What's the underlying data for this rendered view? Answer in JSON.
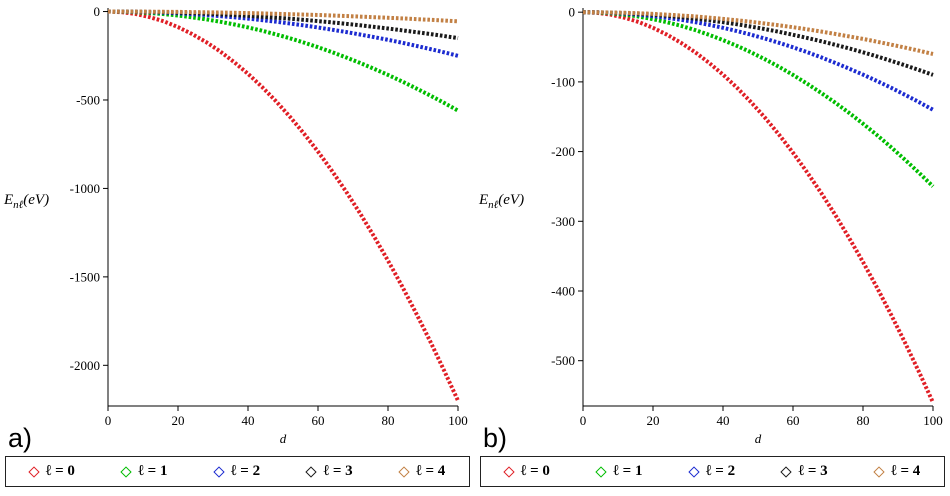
{
  "figure": {
    "panels": [
      {
        "corner_label": "a)"
      },
      {
        "corner_label": "b)"
      }
    ],
    "ylabel": {
      "base": "E",
      "sub": "nℓ",
      "unit": "(eV)"
    },
    "legend": {
      "items": [
        {
          "label": "ℓ = 0",
          "color": "#e01f26"
        },
        {
          "label": "ℓ = 1",
          "color": "#00bd00"
        },
        {
          "label": "ℓ = 2",
          "color": "#1c2bd0"
        },
        {
          "label": "ℓ = 3",
          "color": "#1a1a1a"
        },
        {
          "label": "ℓ = 4",
          "color": "#c28044"
        }
      ]
    }
  },
  "chart_data": [
    {
      "type": "line",
      "title": "",
      "xlabel": "d",
      "ylabel": "E_nℓ(eV)",
      "xlim": [
        0,
        100
      ],
      "ylim": [
        -2230,
        20
      ],
      "x_ticks": [
        0,
        20,
        40,
        60,
        80,
        100
      ],
      "y_ticks": [
        0,
        -500,
        -1000,
        -1500,
        -2000
      ],
      "grid": false,
      "legend_position": "bottom",
      "x": [
        0,
        4,
        8,
        12,
        16,
        20,
        24,
        28,
        32,
        36,
        40,
        44,
        48,
        52,
        56,
        60,
        64,
        68,
        72,
        76,
        80,
        84,
        88,
        92,
        96,
        100
      ],
      "series": [
        {
          "name": "ℓ = 0",
          "color": "#e01f26",
          "values": [
            0,
            -4,
            -14,
            -32,
            -56,
            -88,
            -127,
            -172,
            -225,
            -285,
            -352,
            -426,
            -507,
            -595,
            -690,
            -792,
            -901,
            -1017,
            -1140,
            -1271,
            -1408,
            -1552,
            -1704,
            -1862,
            -2028,
            -2200
          ]
        },
        {
          "name": "ℓ = 1",
          "color": "#00bd00",
          "values": [
            0,
            -0.9,
            -3.6,
            -8.1,
            -14.3,
            -22.4,
            -32.3,
            -43.9,
            -57.3,
            -72.6,
            -89.6,
            -108.4,
            -129,
            -151.4,
            -175.6,
            -201.6,
            -229.4,
            -259,
            -290.3,
            -323.5,
            -358.4,
            -395.1,
            -433.7,
            -474,
            -516.1,
            -560
          ]
        },
        {
          "name": "ℓ = 2",
          "color": "#1c2bd0",
          "values": [
            0,
            -0.4,
            -1.6,
            -3.6,
            -6.4,
            -10,
            -14.4,
            -19.6,
            -25.6,
            -32.4,
            -40,
            -48.4,
            -57.6,
            -67.6,
            -78.4,
            -90,
            -102.4,
            -115.6,
            -129.6,
            -144.4,
            -160,
            -176.4,
            -193.6,
            -211.6,
            -230.4,
            -250
          ]
        },
        {
          "name": "ℓ = 3",
          "color": "#1a1a1a",
          "values": [
            0,
            -0.2,
            -1,
            -2.2,
            -3.8,
            -6,
            -8.6,
            -11.8,
            -15.4,
            -19.4,
            -24,
            -29,
            -34.6,
            -40.6,
            -47,
            -54,
            -61.4,
            -69.4,
            -77.8,
            -86.6,
            -96,
            -105.8,
            -116.2,
            -127,
            -138.2,
            -150
          ]
        },
        {
          "name": "ℓ = 4",
          "color": "#c28044",
          "values": [
            0,
            -0.1,
            -0.4,
            -0.8,
            -1.4,
            -2.2,
            -3.2,
            -4.3,
            -5.6,
            -7.1,
            -8.8,
            -10.7,
            -12.7,
            -14.9,
            -17.3,
            -19.8,
            -22.5,
            -25.4,
            -28.5,
            -31.8,
            -35.2,
            -38.8,
            -42.6,
            -46.6,
            -50.7,
            -55
          ]
        }
      ]
    },
    {
      "type": "line",
      "title": "",
      "xlabel": "d",
      "ylabel": "E_nℓ(eV)",
      "xlim": [
        0,
        100
      ],
      "ylim": [
        -565,
        6
      ],
      "x_ticks": [
        0,
        20,
        40,
        60,
        80,
        100
      ],
      "y_ticks": [
        0,
        -100,
        -200,
        -300,
        -400,
        -500
      ],
      "grid": false,
      "legend_position": "bottom",
      "x": [
        0,
        4,
        8,
        12,
        16,
        20,
        24,
        28,
        32,
        36,
        40,
        44,
        48,
        52,
        56,
        60,
        64,
        68,
        72,
        76,
        80,
        84,
        88,
        92,
        96,
        100
      ],
      "series": [
        {
          "name": "ℓ = 0",
          "color": "#e01f26",
          "values": [
            0,
            -0.9,
            -3.6,
            -8.1,
            -14.3,
            -22.4,
            -32.3,
            -43.9,
            -57.3,
            -72.6,
            -89.6,
            -108.4,
            -129,
            -151.4,
            -175.6,
            -201.6,
            -229.4,
            -259,
            -290.3,
            -323.5,
            -358.4,
            -395.1,
            -433.7,
            -474,
            -516.1,
            -560
          ]
        },
        {
          "name": "ℓ = 1",
          "color": "#00bd00",
          "values": [
            0,
            -0.4,
            -1.6,
            -3.6,
            -6.4,
            -10,
            -14.4,
            -19.6,
            -25.6,
            -32.4,
            -40,
            -48.4,
            -57.6,
            -67.6,
            -78.4,
            -90,
            -102.4,
            -115.6,
            -129.6,
            -144.4,
            -160,
            -176.4,
            -193.6,
            -211.6,
            -230.4,
            -250
          ]
        },
        {
          "name": "ℓ = 2",
          "color": "#1c2bd0",
          "values": [
            0,
            -0.2,
            -0.9,
            -2,
            -3.6,
            -5.6,
            -8.1,
            -11,
            -14.3,
            -18.1,
            -22.4,
            -27.1,
            -32.3,
            -37.9,
            -43.9,
            -50.4,
            -57.3,
            -64.7,
            -72.6,
            -80.9,
            -89.6,
            -98.8,
            -108.4,
            -118.5,
            -129,
            -140
          ]
        },
        {
          "name": "ℓ = 3",
          "color": "#1a1a1a",
          "values": [
            0,
            -0.1,
            -0.6,
            -1.3,
            -2.3,
            -3.6,
            -5.2,
            -7.1,
            -9.2,
            -11.7,
            -14.4,
            -17.4,
            -20.7,
            -24.3,
            -28.2,
            -32.4,
            -36.9,
            -41.6,
            -46.7,
            -52,
            -57.6,
            -63.5,
            -69.7,
            -76.2,
            -82.9,
            -90
          ]
        },
        {
          "name": "ℓ = 4",
          "color": "#c28044",
          "values": [
            0,
            -0.1,
            -0.4,
            -0.9,
            -1.5,
            -2.4,
            -3.5,
            -4.7,
            -6.1,
            -7.8,
            -9.6,
            -11.6,
            -13.8,
            -16.2,
            -18.8,
            -21.6,
            -24.6,
            -27.7,
            -31.1,
            -34.7,
            -38.4,
            -42.3,
            -46.5,
            -50.8,
            -55.3,
            -60
          ]
        }
      ]
    }
  ]
}
